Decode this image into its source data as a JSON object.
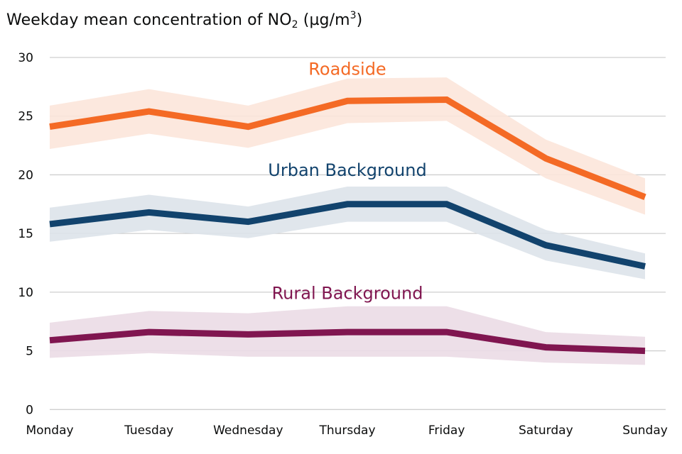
{
  "chart_data": {
    "type": "line",
    "title": "Weekday mean concentration of NO",
    "title_subscript": "2",
    "title_units_prefix": " (µg/m",
    "title_units_superscript": "3",
    "title_units_suffix": ")",
    "xlabel": "",
    "ylabel": "",
    "categories": [
      "Monday",
      "Tuesday",
      "Wednesday",
      "Thursday",
      "Friday",
      "Saturday",
      "Sunday"
    ],
    "ylim": [
      0,
      30
    ],
    "yticks": [
      0,
      5,
      10,
      15,
      20,
      25,
      30
    ],
    "grid": true,
    "legend": "inline labels",
    "series": [
      {
        "name": "Roadside",
        "color": "#f46a25",
        "band_color": "#fce5da",
        "values": [
          24.1,
          25.4,
          24.1,
          26.3,
          26.4,
          21.4,
          18.1
        ],
        "upper": [
          25.9,
          27.3,
          25.9,
          28.2,
          28.3,
          23.0,
          19.7
        ],
        "lower": [
          22.2,
          23.5,
          22.3,
          24.4,
          24.6,
          19.7,
          16.6
        ]
      },
      {
        "name": "Urban Background",
        "color": "#12436d",
        "band_color": "#dde3ea",
        "values": [
          15.8,
          16.8,
          16.0,
          17.5,
          17.5,
          14.0,
          12.2
        ],
        "upper": [
          17.2,
          18.3,
          17.3,
          19.0,
          19.0,
          15.3,
          13.3
        ],
        "lower": [
          14.3,
          15.3,
          14.6,
          16.0,
          16.0,
          12.7,
          11.1
        ]
      },
      {
        "name": "Rural Background",
        "color": "#801650",
        "band_color": "#ebdce5",
        "values": [
          5.9,
          6.6,
          6.4,
          6.6,
          6.6,
          5.3,
          5.0
        ],
        "upper": [
          7.4,
          8.4,
          8.2,
          8.8,
          8.8,
          6.6,
          6.2
        ],
        "lower": [
          4.4,
          4.8,
          4.5,
          4.5,
          4.5,
          4.0,
          3.8
        ]
      }
    ],
    "annotations": [
      {
        "text": "Roadside",
        "series": "Roadside",
        "anchor_category": "Thursday",
        "anchor_value": 29.0
      },
      {
        "text": "Urban Background",
        "series": "Urban Background",
        "anchor_category": "Thursday",
        "anchor_value": 20.4
      },
      {
        "text": "Rural Background",
        "series": "Rural Background",
        "anchor_category": "Thursday",
        "anchor_value": 9.9
      }
    ]
  }
}
